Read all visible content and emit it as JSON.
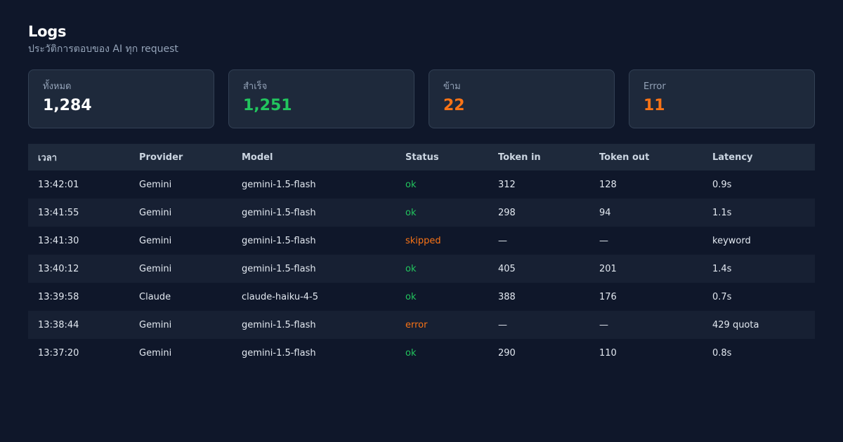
{
  "header": {
    "title": "Logs",
    "subtitle": "ประวัติการตอบของ AI ทุก request"
  },
  "stats": [
    {
      "label": "ทั้งหมด",
      "value": "1,284",
      "color": "#ffffff"
    },
    {
      "label": "สำเร็จ",
      "value": "1,251",
      "color": "#22c55e"
    },
    {
      "label": "ข้าม",
      "value": "22",
      "color": "#f97316"
    },
    {
      "label": "Error",
      "value": "11",
      "color": "#f97316"
    }
  ],
  "table": {
    "columns": [
      "เวลา",
      "Provider",
      "Model",
      "Status",
      "Token in",
      "Token out",
      "Latency"
    ],
    "status_colors": {
      "ok": "#22c55e",
      "skipped": "#f97316",
      "error": "#f97316"
    },
    "rows": [
      [
        "13:42:01",
        "Gemini",
        "gemini-1.5-flash",
        "ok",
        "312",
        "128",
        "0.9s"
      ],
      [
        "13:41:55",
        "Gemini",
        "gemini-1.5-flash",
        "ok",
        "298",
        "94",
        "1.1s"
      ],
      [
        "13:41:30",
        "Gemini",
        "gemini-1.5-flash",
        "skipped",
        "—",
        "—",
        "keyword"
      ],
      [
        "13:40:12",
        "Gemini",
        "gemini-1.5-flash",
        "ok",
        "405",
        "201",
        "1.4s"
      ],
      [
        "13:39:58",
        "Claude",
        "claude-haiku-4-5",
        "ok",
        "388",
        "176",
        "0.7s"
      ],
      [
        "13:38:44",
        "Gemini",
        "gemini-1.5-flash",
        "error",
        "—",
        "—",
        "429 quota"
      ],
      [
        "13:37:20",
        "Gemini",
        "gemini-1.5-flash",
        "ok",
        "290",
        "110",
        "0.8s"
      ]
    ]
  }
}
